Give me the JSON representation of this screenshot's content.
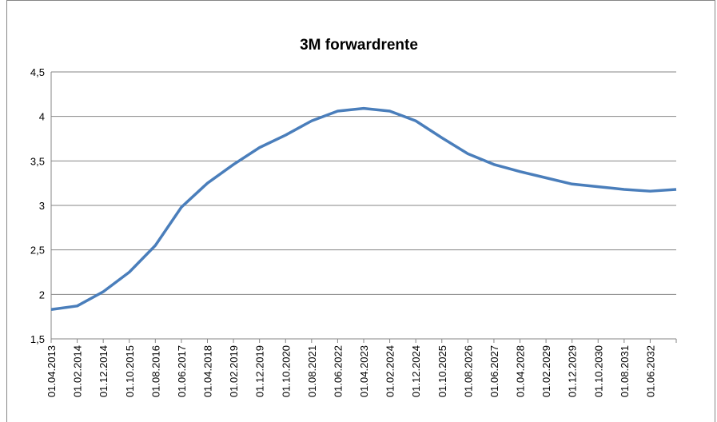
{
  "chart_data": {
    "type": "line",
    "title": "3M forwardrente",
    "categories": [
      "01.04.2013",
      "01.02.2014",
      "01.12.2014",
      "01.10.2015",
      "01.08.2016",
      "01.06.2017",
      "01.04.2018",
      "01.02.2019",
      "01.12.2019",
      "01.10.2020",
      "01.08.2021",
      "01.06.2022",
      "01.04.2023",
      "01.02.2024",
      "01.12.2024",
      "01.10.2025",
      "01.08.2026",
      "01.06.2027",
      "01.04.2028",
      "01.02.2029",
      "01.12.2029",
      "01.10.2030",
      "01.08.2031",
      "01.06.2032",
      null
    ],
    "values": [
      1.83,
      1.87,
      2.03,
      2.25,
      2.55,
      2.98,
      3.25,
      3.46,
      3.65,
      3.79,
      3.95,
      4.06,
      4.09,
      4.06,
      3.95,
      3.76,
      3.58,
      3.46,
      3.38,
      3.31,
      3.24,
      3.21,
      3.18,
      3.16,
      3.18
    ],
    "color": "#4a7ebb",
    "ylim": [
      1.5,
      4.5
    ],
    "yticks": [
      {
        "value": 1.5,
        "label": "1,5"
      },
      2,
      {
        "value": 2.5,
        "label": "2,5"
      },
      3,
      {
        "value": 3.5,
        "label": "3,5"
      },
      4,
      {
        "value": 4.5,
        "label": "4,5"
      }
    ],
    "grid": true
  }
}
